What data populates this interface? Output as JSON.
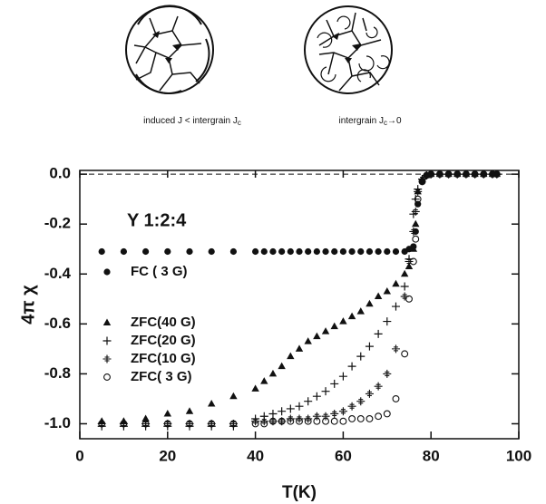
{
  "diagram_captions": [
    {
      "text": "induced J < intergrain J",
      "sub": "c"
    },
    {
      "text": "intergrain J",
      "sub": "c",
      "after": "→0"
    }
  ],
  "chart_data": {
    "type": "scatter",
    "annotation": "Y 1:2:4",
    "x_label": "T(K)",
    "y_label": "4π χ",
    "xlim": [
      0,
      100
    ],
    "xticks": [
      0,
      20,
      40,
      60,
      80,
      100
    ],
    "ylim": [
      -1.06,
      0.015
    ],
    "yticks": [
      {
        "value": 0,
        "label": "0.0"
      },
      -0.2,
      -0.4,
      -0.6,
      -0.8,
      {
        "value": -1,
        "label": "-1.0"
      }
    ],
    "reference_line": 0,
    "x": [
      5,
      10,
      15,
      20,
      25,
      30,
      35,
      40,
      42,
      44,
      46,
      48,
      50,
      52,
      54,
      56,
      58,
      60,
      62,
      64,
      66,
      68,
      70,
      72,
      74,
      75,
      76,
      76.5,
      77,
      78,
      79,
      80,
      82,
      84,
      86,
      88,
      90,
      92,
      94,
      95
    ],
    "series": [
      {
        "name": "FC ( 3 G)",
        "color": "#111111",
        "marker": "circle-filled",
        "values": [
          -0.31,
          -0.31,
          -0.31,
          -0.31,
          -0.31,
          -0.31,
          -0.31,
          -0.31,
          -0.31,
          -0.31,
          -0.31,
          -0.31,
          -0.31,
          -0.31,
          -0.31,
          -0.31,
          -0.31,
          -0.31,
          -0.31,
          -0.31,
          -0.31,
          -0.31,
          -0.31,
          -0.31,
          -0.31,
          -0.3,
          -0.29,
          -0.23,
          -0.12,
          -0.03,
          -0.005,
          0,
          0,
          0,
          0,
          0,
          0,
          0,
          0,
          0
        ]
      },
      {
        "name": "ZFC(40 G)",
        "color": "#111111",
        "marker": "triangle",
        "values": [
          -0.99,
          -0.99,
          -0.98,
          -0.96,
          -0.95,
          -0.92,
          -0.89,
          -0.86,
          -0.83,
          -0.8,
          -0.77,
          -0.73,
          -0.7,
          -0.67,
          -0.65,
          -0.63,
          -0.61,
          -0.59,
          -0.57,
          -0.55,
          -0.52,
          -0.49,
          -0.47,
          -0.44,
          -0.4,
          -0.37,
          -0.3,
          -0.2,
          -0.07,
          -0.02,
          -0.005,
          0,
          0,
          0,
          0,
          0,
          0,
          0,
          0,
          0
        ]
      },
      {
        "name": "ZFC(20 G)",
        "color": "#111111",
        "marker": "plus",
        "values": [
          -1.01,
          -1.01,
          -1.01,
          -1.01,
          -1.01,
          -1.01,
          -1.01,
          -0.98,
          -0.97,
          -0.96,
          -0.95,
          -0.94,
          -0.93,
          -0.91,
          -0.89,
          -0.87,
          -0.84,
          -0.81,
          -0.77,
          -0.73,
          -0.69,
          -0.64,
          -0.59,
          -0.53,
          -0.45,
          -0.34,
          -0.16,
          -0.1,
          -0.06,
          -0.02,
          -0.005,
          0,
          0,
          0,
          0,
          0,
          0,
          0,
          0,
          0
        ]
      },
      {
        "name": "ZFC(10 G)",
        "color": "#111111",
        "marker": "plus-circle",
        "values": [
          -1,
          -1,
          -1,
          -1,
          -1,
          -1,
          -1,
          -0.99,
          -0.99,
          -0.99,
          -0.99,
          -0.98,
          -0.98,
          -0.98,
          -0.97,
          -0.97,
          -0.96,
          -0.95,
          -0.93,
          -0.91,
          -0.88,
          -0.85,
          -0.8,
          -0.7,
          -0.49,
          -0.35,
          -0.23,
          -0.15,
          -0.07,
          -0.02,
          -0.005,
          0,
          0,
          0,
          0,
          0,
          0,
          0,
          0,
          0
        ]
      },
      {
        "name": "ZFC( 3 G)",
        "color": "#111111",
        "marker": "circle-open",
        "values": [
          -1,
          -1,
          -1,
          -1,
          -1,
          -1,
          -1,
          -1,
          -1,
          -0.99,
          -0.99,
          -0.99,
          -0.99,
          -0.99,
          -0.99,
          -0.99,
          -0.99,
          -0.99,
          -0.98,
          -0.98,
          -0.98,
          -0.97,
          -0.96,
          -0.9,
          -0.72,
          -0.5,
          -0.35,
          -0.26,
          -0.1,
          -0.03,
          -0.005,
          0,
          0,
          0,
          0,
          0,
          0,
          0,
          0,
          0
        ]
      }
    ]
  }
}
